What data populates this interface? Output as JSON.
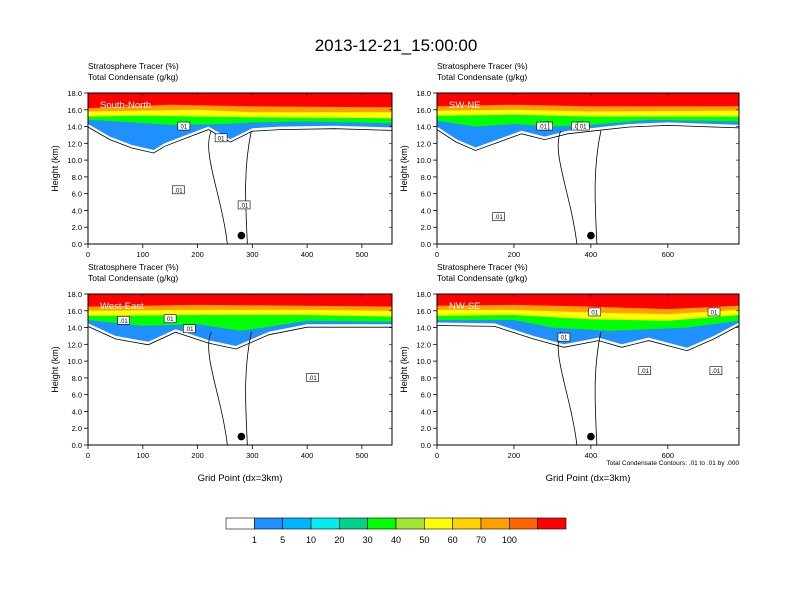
{
  "title": "2013-12-21_15:00:00",
  "chart_data": [
    {
      "type": "heatmap",
      "subtitle_1": "Stratosphere Tracer   (%)",
      "subtitle_2": "Total Condensate   (g/kg)",
      "panel_label": "South-North",
      "ylabel": "Height (km)",
      "xlabel": "",
      "xlim": [
        0,
        555
      ],
      "ylim": [
        0,
        18
      ],
      "xticks": [
        0,
        100,
        200,
        300,
        400,
        500
      ],
      "yticks": [
        0.0,
        2.0,
        4.0,
        6.0,
        8.0,
        10.0,
        12.0,
        14.0,
        16.0,
        18.0
      ],
      "tracer_layers": [
        {
          "level": 100,
          "bottom": [
            [
              0,
              16.2
            ],
            [
              80,
              16.4
            ],
            [
              150,
              16.6
            ],
            [
              300,
              16.4
            ],
            [
              555,
              16.3
            ]
          ]
        },
        {
          "level": 70,
          "bottom": [
            [
              0,
              15.8
            ],
            [
              100,
              15.9
            ],
            [
              200,
              16.0
            ],
            [
              300,
              15.7
            ],
            [
              555,
              15.7
            ]
          ]
        },
        {
          "level": 50,
          "bottom": [
            [
              0,
              15.2
            ],
            [
              100,
              15.3
            ],
            [
              200,
              15.2
            ],
            [
              300,
              15.1
            ],
            [
              555,
              15.0
            ]
          ]
        },
        {
          "level": 20,
          "bottom": [
            [
              0,
              14.8
            ],
            [
              80,
              14.5
            ],
            [
              150,
              14.2
            ],
            [
              250,
              14.3
            ],
            [
              300,
              14.5
            ],
            [
              400,
              14.6
            ],
            [
              555,
              14.4
            ]
          ]
        },
        {
          "level": 5,
          "bottom": [
            [
              0,
              14.3
            ],
            [
              40,
              12.8
            ],
            [
              80,
              11.8
            ],
            [
              120,
              11.2
            ],
            [
              140,
              12.0
            ],
            [
              180,
              13.0
            ],
            [
              220,
              14.0
            ],
            [
              260,
              12.5
            ],
            [
              300,
              13.8
            ],
            [
              350,
              14.0
            ],
            [
              450,
              14.1
            ],
            [
              555,
              13.9
            ]
          ]
        }
      ],
      "contour_labels": [
        {
          "x": 175,
          "y": 14.0,
          "text": "01"
        },
        {
          "x": 243,
          "y": 12.6,
          "text": "01"
        },
        {
          "x": 165,
          "y": 6.4,
          "text": ".01"
        },
        {
          "x": 285,
          "y": 4.6,
          "text": ".01"
        }
      ],
      "marker": {
        "x": 280,
        "y": 1.0
      }
    },
    {
      "type": "heatmap",
      "subtitle_1": "Stratosphere Tracer   (%)",
      "subtitle_2": "Total Condensate   (g/kg)",
      "panel_label": "SW-NE",
      "ylabel": "Height (km)",
      "xlabel": "",
      "xlim": [
        0,
        785
      ],
      "ylim": [
        0,
        18
      ],
      "xticks": [
        0,
        200,
        400,
        600
      ],
      "yticks": [
        0.0,
        2.0,
        4.0,
        6.0,
        8.0,
        10.0,
        12.0,
        14.0,
        16.0,
        18.0
      ],
      "tracer_layers": [
        {
          "level": 100,
          "bottom": [
            [
              0,
              16.4
            ],
            [
              200,
              16.6
            ],
            [
              400,
              16.4
            ],
            [
              785,
              16.4
            ]
          ]
        },
        {
          "level": 70,
          "bottom": [
            [
              0,
              15.9
            ],
            [
              200,
              16.0
            ],
            [
              400,
              15.8
            ],
            [
              785,
              15.9
            ]
          ]
        },
        {
          "level": 50,
          "bottom": [
            [
              0,
              15.3
            ],
            [
              200,
              15.4
            ],
            [
              400,
              15.2
            ],
            [
              785,
              15.2
            ]
          ]
        },
        {
          "level": 20,
          "bottom": [
            [
              0,
              14.7
            ],
            [
              100,
              14.0
            ],
            [
              200,
              14.3
            ],
            [
              300,
              14.0
            ],
            [
              400,
              14.2
            ],
            [
              550,
              14.8
            ],
            [
              785,
              14.6
            ]
          ]
        },
        {
          "level": 5,
          "bottom": [
            [
              0,
              14.0
            ],
            [
              50,
              12.5
            ],
            [
              100,
              11.5
            ],
            [
              160,
              12.5
            ],
            [
              220,
              13.5
            ],
            [
              280,
              12.8
            ],
            [
              340,
              13.5
            ],
            [
              400,
              13.8
            ],
            [
              500,
              14.3
            ],
            [
              600,
              14.5
            ],
            [
              785,
              14.2
            ]
          ]
        }
      ],
      "contour_labels": [
        {
          "x": 285,
          "y": 14.0,
          "text": "01"
        },
        {
          "x": 275,
          "y": 14.0,
          "text": ".01"
        },
        {
          "x": 365,
          "y": 14.0,
          "text": ".01"
        },
        {
          "x": 160,
          "y": 3.2,
          "text": ".01"
        },
        {
          "x": 380,
          "y": 14.0,
          "text": "01"
        }
      ],
      "marker": {
        "x": 400,
        "y": 1.0
      }
    },
    {
      "type": "heatmap",
      "subtitle_1": "Stratosphere Tracer   (%)",
      "subtitle_2": "Total Condensate   (g/kg)",
      "panel_label": "West-East",
      "ylabel": "Height (km)",
      "xlabel": "Grid Point (dx=3km)",
      "xlim": [
        0,
        555
      ],
      "ylim": [
        0,
        18
      ],
      "xticks": [
        0,
        100,
        200,
        300,
        400,
        500
      ],
      "yticks": [
        0.0,
        2.0,
        4.0,
        6.0,
        8.0,
        10.0,
        12.0,
        14.0,
        16.0,
        18.0
      ],
      "tracer_layers": [
        {
          "level": 100,
          "bottom": [
            [
              0,
              16.5
            ],
            [
              200,
              16.7
            ],
            [
              400,
              16.6
            ],
            [
              555,
              16.5
            ]
          ]
        },
        {
          "level": 70,
          "bottom": [
            [
              0,
              16.0
            ],
            [
              200,
              16.1
            ],
            [
              400,
              16.1
            ],
            [
              555,
              16.0
            ]
          ]
        },
        {
          "level": 50,
          "bottom": [
            [
              0,
              15.4
            ],
            [
              200,
              15.5
            ],
            [
              400,
              15.5
            ],
            [
              555,
              15.3
            ]
          ]
        },
        {
          "level": 20,
          "bottom": [
            [
              0,
              14.9
            ],
            [
              100,
              14.2
            ],
            [
              200,
              14.4
            ],
            [
              280,
              13.6
            ],
            [
              400,
              14.8
            ],
            [
              555,
              14.7
            ]
          ]
        },
        {
          "level": 5,
          "bottom": [
            [
              0,
              14.5
            ],
            [
              50,
              13.0
            ],
            [
              110,
              12.3
            ],
            [
              160,
              13.8
            ],
            [
              220,
              12.5
            ],
            [
              270,
              11.8
            ],
            [
              330,
              13.5
            ],
            [
              400,
              14.4
            ],
            [
              555,
              14.4
            ]
          ]
        }
      ],
      "contour_labels": [
        {
          "x": 150,
          "y": 15.0,
          "text": "01"
        },
        {
          "x": 65,
          "y": 14.8,
          "text": ".01"
        },
        {
          "x": 185,
          "y": 13.8,
          "text": ".01"
        },
        {
          "x": 410,
          "y": 8.0,
          "text": ".01"
        }
      ],
      "marker": {
        "x": 280,
        "y": 1.0
      }
    },
    {
      "type": "heatmap",
      "subtitle_1": "Stratosphere Tracer   (%)",
      "subtitle_2": "Total Condensate   (g/kg)",
      "panel_label": "NW-SE",
      "ylabel": "Height (km)",
      "xlabel": "Grid Point (dx=3km)",
      "footnote": "Total Condensate Contours: .01 to .01 by .000",
      "xlim": [
        0,
        785
      ],
      "ylim": [
        0,
        18
      ],
      "xticks": [
        0,
        200,
        400,
        600
      ],
      "yticks": [
        0.0,
        2.0,
        4.0,
        6.0,
        8.0,
        10.0,
        12.0,
        14.0,
        16.0,
        18.0
      ],
      "tracer_layers": [
        {
          "level": 100,
          "bottom": [
            [
              0,
              16.6
            ],
            [
              200,
              16.7
            ],
            [
              400,
              16.5
            ],
            [
              600,
              16.2
            ],
            [
              785,
              16.6
            ]
          ]
        },
        {
          "level": 70,
          "bottom": [
            [
              0,
              16.1
            ],
            [
              200,
              16.1
            ],
            [
              400,
              15.8
            ],
            [
              600,
              15.6
            ],
            [
              785,
              16.1
            ]
          ]
        },
        {
          "level": 50,
          "bottom": [
            [
              0,
              15.4
            ],
            [
              200,
              15.5
            ],
            [
              400,
              15.0
            ],
            [
              600,
              14.8
            ],
            [
              785,
              15.5
            ]
          ]
        },
        {
          "level": 20,
          "bottom": [
            [
              0,
              14.9
            ],
            [
              200,
              14.9
            ],
            [
              300,
              14.0
            ],
            [
              450,
              13.6
            ],
            [
              550,
              13.8
            ],
            [
              650,
              14.0
            ],
            [
              785,
              14.8
            ]
          ]
        },
        {
          "level": 5,
          "bottom": [
            [
              0,
              14.6
            ],
            [
              150,
              14.5
            ],
            [
              250,
              13.0
            ],
            [
              330,
              12.0
            ],
            [
              420,
              12.8
            ],
            [
              480,
              12.0
            ],
            [
              550,
              12.8
            ],
            [
              650,
              11.6
            ],
            [
              720,
              13.0
            ],
            [
              785,
              14.6
            ]
          ]
        }
      ],
      "contour_labels": [
        {
          "x": 410,
          "y": 15.8,
          "text": "01"
        },
        {
          "x": 720,
          "y": 15.8,
          "text": "01"
        },
        {
          "x": 330,
          "y": 12.8,
          "text": "01"
        },
        {
          "x": 540,
          "y": 8.8,
          "text": ".01"
        },
        {
          "x": 725,
          "y": 8.8,
          "text": ".01"
        }
      ],
      "marker": {
        "x": 400,
        "y": 1.0
      }
    }
  ],
  "colorbar": {
    "levels": [
      "1",
      "5",
      "10",
      "20",
      "30",
      "40",
      "50",
      "60",
      "70",
      "100"
    ],
    "colors": [
      "#ffffff",
      "#1e90ff",
      "#00b4ff",
      "#00eeee",
      "#00d28c",
      "#00ff00",
      "#a0e632",
      "#ffff00",
      "#ffd200",
      "#ffa000",
      "#ff6400",
      "#ff0000"
    ]
  }
}
